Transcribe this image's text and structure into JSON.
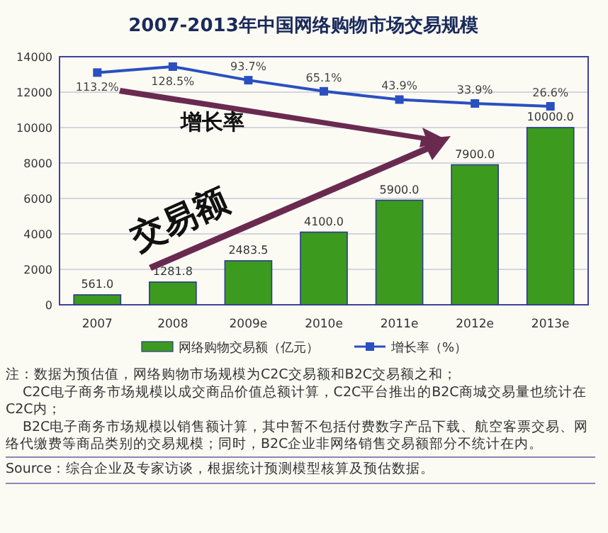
{
  "chart_data": {
    "type": "bar",
    "title": "2007-2013年中国网络购物市场交易规模",
    "categories": [
      "2007",
      "2008",
      "2009e",
      "2010e",
      "2011e",
      "2012e",
      "2013e"
    ],
    "series": [
      {
        "name": "网络购物交易额（亿元）",
        "color": "#3c9a1e",
        "values": [
          561.0,
          1281.8,
          2483.5,
          4100.0,
          5900.0,
          7900.0,
          10000.0
        ],
        "value_labels": [
          "561.0",
          "1281.8",
          "2483.5",
          "4100.0",
          "5900.0",
          "7900.0",
          "10000.0"
        ]
      },
      {
        "name": "增长率（%）",
        "type": "line",
        "axis": "y2",
        "color": "#2a4fc0",
        "marker": "square",
        "values": [
          113.2,
          128.5,
          93.7,
          65.1,
          43.9,
          33.9,
          26.6
        ],
        "value_labels": [
          "113.2%",
          "128.5%",
          "93.7%",
          "65.1%",
          "43.9%",
          "33.9%",
          "26.6%"
        ]
      }
    ],
    "ylim": [
      0,
      14000
    ],
    "yticks": [
      0,
      2000,
      4000,
      6000,
      8000,
      10000,
      12000,
      14000
    ],
    "grid": "y",
    "legend": "bottom",
    "annotations": [
      "增长率",
      "交易额",
      "注：数据为预估值，网络购物市场规模为C2C交易额和B2C交易额之和；",
      "C2C电子商务市场规模以成交商品价值总额计算，C2C平台推出的B2C商城交易量也统计在C2C内；",
      "B2C电子商务市场规模以销售额计算，其中暂不包括付费数字产品下载、航空客票交易、网络代缴费等商品类别的交易规模；同时，B2C企业非网络销售交易额部分不统计在内。",
      "Source：综合企业及专家访谈，根据统计预测模型核算及预估数据。"
    ]
  }
}
